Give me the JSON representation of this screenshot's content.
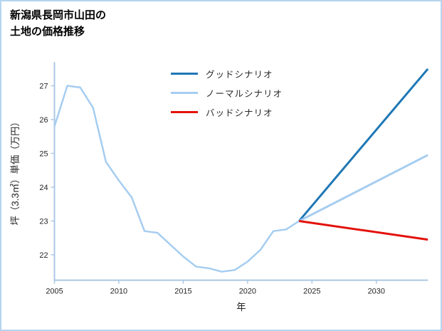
{
  "title": {
    "line1": "新潟県長岡市山田の",
    "line2": "土地の価格推移"
  },
  "chart_data": {
    "type": "line",
    "title": "新潟県長岡市山田の土地の価格推移",
    "xlabel": "年",
    "ylabel": "坪（3.3㎡）単価（万円）",
    "xlim": [
      2005,
      2034
    ],
    "ylim": [
      21.25,
      27.7
    ],
    "xticks": [
      2005,
      2010,
      2015,
      2020,
      2025,
      2030
    ],
    "yticks": [
      22,
      23,
      24,
      25,
      26,
      27
    ],
    "grid": false,
    "legend_position": "upper-left-of-center",
    "axis_color": "#aac8e4",
    "text_color": "#262626",
    "history": {
      "color": "#a5cdf0",
      "x": [
        2005,
        2006,
        2007,
        2008,
        2009,
        2010,
        2011,
        2012,
        2013,
        2014,
        2015,
        2016,
        2017,
        2018,
        2019,
        2020,
        2021,
        2022,
        2023,
        2024
      ],
      "y": [
        25.8,
        27.0,
        26.95,
        26.35,
        24.75,
        24.2,
        23.7,
        22.7,
        22.65,
        22.3,
        21.95,
        21.65,
        21.6,
        21.5,
        21.55,
        21.8,
        22.15,
        22.7,
        22.75,
        23.0
      ]
    },
    "series": [
      {
        "name": "グッドシナリオ",
        "color": "#1f77b4",
        "x": [
          2024,
          2034
        ],
        "y": [
          23.0,
          27.5
        ]
      },
      {
        "name": "ノーマルシナリオ",
        "color": "#a5cdf0",
        "x": [
          2024,
          2034
        ],
        "y": [
          23.0,
          24.95
        ]
      },
      {
        "name": "バッドシナリオ",
        "color": "#e3120b",
        "x": [
          2024,
          2034
        ],
        "y": [
          23.0,
          22.45
        ]
      }
    ]
  }
}
